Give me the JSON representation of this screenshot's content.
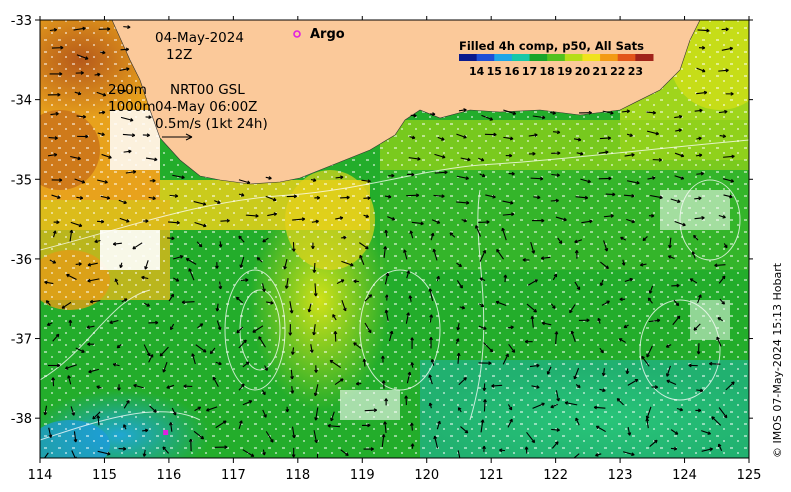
{
  "map": {
    "date": "04-May-2024",
    "hour": "12Z",
    "depth_shallow": "200m",
    "depth_deep": "1000m",
    "model": "NRT00 GSL",
    "model_time": "04-May 06:00Z",
    "scale_label": "0.5m/s (1kt 24h)",
    "argo_label": "Argo",
    "credit": "© IMOS 07-May-2024 15:13 Hobart"
  },
  "legend": {
    "title": "Filled 4h comp, p50, All Sats",
    "values": [
      "14",
      "15",
      "16",
      "17",
      "18",
      "19",
      "20",
      "21",
      "22",
      "23"
    ],
    "colors": [
      "#0b1a8c",
      "#1f4fd6",
      "#1fa6e6",
      "#18c8a8",
      "#19a52a",
      "#52c11e",
      "#b6dd18",
      "#f0e21c",
      "#f39a14",
      "#e2551a",
      "#a0231a"
    ]
  },
  "axes": {
    "x_ticks": [
      "114",
      "115",
      "116",
      "117",
      "118",
      "119",
      "120",
      "121",
      "122",
      "123",
      "124",
      "125"
    ],
    "y_ticks": [
      "-33",
      "-34",
      "-35",
      "-36",
      "-37",
      "-38"
    ],
    "lon_range": [
      114,
      125
    ],
    "lat_range": [
      -38.5,
      -33
    ]
  },
  "argo_floats": [
    {
      "lon": 118.0,
      "lat": -33.2,
      "color": "#e020e0"
    },
    {
      "lon": 115.95,
      "lat": -38.18,
      "color": "#e020e0"
    }
  ]
}
